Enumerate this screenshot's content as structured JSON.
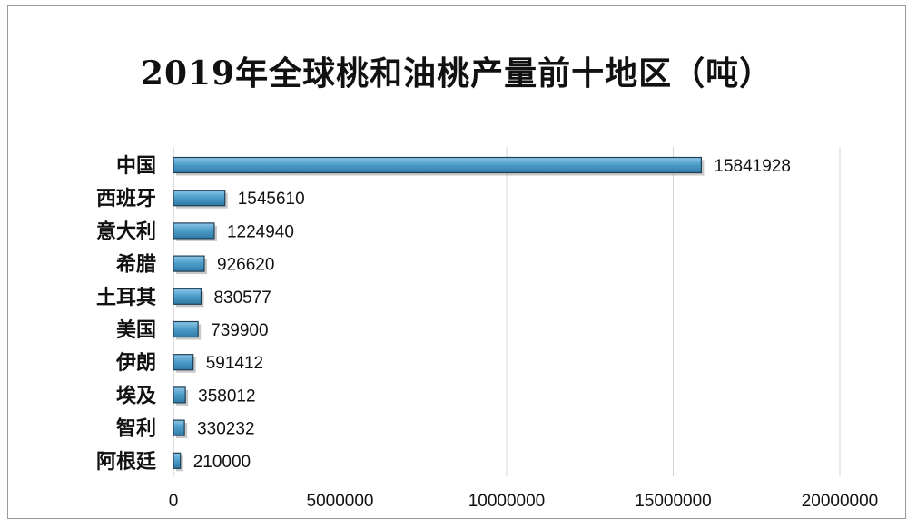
{
  "chart_data": {
    "type": "bar",
    "orientation": "horizontal",
    "title": "2019年全球桃和油桃产量前十地区（吨）",
    "categories": [
      "中国",
      "西班牙",
      "意大利",
      "希腊",
      "土耳其",
      "美国",
      "伊朗",
      "埃及",
      "智利",
      "阿根廷"
    ],
    "values": [
      15841928,
      1545610,
      1224940,
      926620,
      830577,
      739900,
      591412,
      358012,
      330232,
      210000
    ],
    "xlim": [
      0,
      20000000
    ],
    "xticks": [
      "0",
      "5000000",
      "10000000",
      "15000000",
      "20000000"
    ],
    "grid": true,
    "legend": "none",
    "bar_color": "#4f9fcb"
  }
}
